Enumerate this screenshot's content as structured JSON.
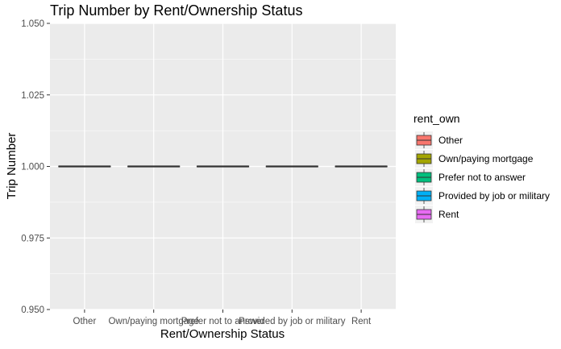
{
  "chart_data": {
    "type": "box",
    "title": "Trip Number by Rent/Ownership Status",
    "xlabel": "Rent/Ownership Status",
    "ylabel": "Trip Number",
    "categories": [
      "Other",
      "Own/paying mortgage",
      "Prefer not to answer",
      "Provided by job or military",
      "Rent"
    ],
    "values": [
      1.0,
      1.0,
      1.0,
      1.0,
      1.0
    ],
    "ylim": [
      0.95,
      1.05
    ],
    "yticks": [
      "0.950",
      "0.975",
      "1.000",
      "1.025",
      "1.050"
    ],
    "ytick_values": [
      0.95,
      0.975,
      1.0,
      1.025,
      1.05
    ],
    "grid": true,
    "legend": {
      "title": "rent_own",
      "position": "right",
      "entries": [
        "Other",
        "Own/paying mortgage",
        "Prefer not to answer",
        "Provided by job or military",
        "Rent"
      ]
    },
    "colors": [
      "#F8766D",
      "#A3A500",
      "#00BF7D",
      "#00B0F6",
      "#E76BF3"
    ],
    "panel_background": "#EBEBEB",
    "grid_color": "#FFFFFF",
    "box_line_color": "#333333"
  }
}
